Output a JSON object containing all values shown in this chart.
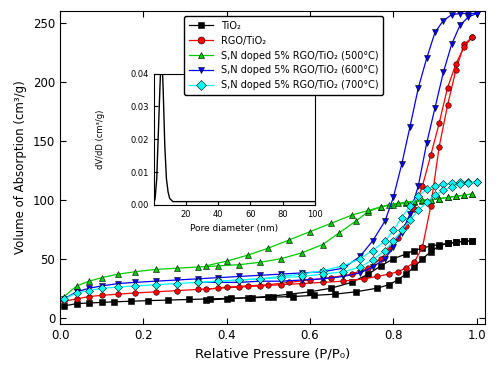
{
  "xlabel": "Relative Pressure (P/P₀)",
  "ylabel": "Volume of Absorption (cm³/g)",
  "xlim": [
    0.0,
    1.02
  ],
  "ylim": [
    -5,
    260
  ],
  "yticks": [
    0,
    50,
    100,
    150,
    200,
    250
  ],
  "xticks": [
    0.0,
    0.2,
    0.4,
    0.6,
    0.8,
    1.0
  ],
  "series": {
    "TiO2": {
      "color": "black",
      "marker": "s",
      "label": "TiO₂",
      "adsorption": {
        "x": [
          0.01,
          0.04,
          0.07,
          0.1,
          0.13,
          0.17,
          0.21,
          0.26,
          0.31,
          0.36,
          0.41,
          0.46,
          0.51,
          0.56,
          0.61,
          0.66,
          0.71,
          0.76,
          0.79,
          0.81,
          0.83,
          0.85,
          0.87,
          0.89,
          0.91,
          0.93,
          0.95,
          0.97,
          0.99
        ],
        "y": [
          10,
          12,
          12.5,
          13,
          13.5,
          14,
          14.5,
          15,
          15.5,
          16,
          16.5,
          17,
          17.5,
          18,
          19,
          20,
          22,
          25,
          28,
          32,
          37,
          43,
          50,
          56,
          61,
          63,
          64,
          65,
          65
        ]
      },
      "desorption": {
        "x": [
          0.99,
          0.97,
          0.95,
          0.93,
          0.91,
          0.89,
          0.87,
          0.85,
          0.83,
          0.8,
          0.77,
          0.74,
          0.7,
          0.65,
          0.6,
          0.55,
          0.5,
          0.45,
          0.4,
          0.35
        ],
        "y": [
          65,
          65,
          64,
          63,
          62,
          61,
          59,
          57,
          54,
          50,
          44,
          37,
          30,
          25,
          22,
          20,
          18,
          17,
          16,
          15
        ]
      }
    },
    "RGO_TiO2": {
      "color": "red",
      "marker": "o",
      "label": "RGO/TiO₂",
      "adsorption": {
        "x": [
          0.01,
          0.04,
          0.07,
          0.1,
          0.14,
          0.18,
          0.23,
          0.28,
          0.33,
          0.38,
          0.43,
          0.48,
          0.53,
          0.58,
          0.63,
          0.68,
          0.73,
          0.76,
          0.79,
          0.81,
          0.83,
          0.85,
          0.87,
          0.89,
          0.91,
          0.93,
          0.95,
          0.97,
          0.99
        ],
        "y": [
          14,
          16,
          18,
          19,
          20,
          21,
          22,
          23,
          24,
          25,
          26,
          27,
          28,
          29,
          30,
          31,
          33,
          35,
          37,
          39,
          42,
          47,
          60,
          95,
          145,
          180,
          210,
          232,
          238
        ]
      },
      "desorption": {
        "x": [
          0.99,
          0.97,
          0.95,
          0.93,
          0.91,
          0.89,
          0.87,
          0.85,
          0.83,
          0.81,
          0.79,
          0.77,
          0.74,
          0.7,
          0.65,
          0.6,
          0.55,
          0.5,
          0.45,
          0.4,
          0.35
        ],
        "y": [
          238,
          230,
          215,
          195,
          165,
          138,
          112,
          92,
          78,
          68,
          58,
          50,
          42,
          37,
          34,
          32,
          30,
          28,
          27,
          26,
          24
        ]
      }
    },
    "SN_500": {
      "color": "#00cc00",
      "marker": "^",
      "label": "S,N doped 5% RGO/TiO₂ (500°C)",
      "adsorption": {
        "x": [
          0.01,
          0.04,
          0.07,
          0.1,
          0.14,
          0.18,
          0.23,
          0.28,
          0.33,
          0.38,
          0.43,
          0.48,
          0.53,
          0.58,
          0.63,
          0.67,
          0.71,
          0.74,
          0.77,
          0.8,
          0.83,
          0.85,
          0.87,
          0.89,
          0.91,
          0.93,
          0.95,
          0.97,
          0.99
        ],
        "y": [
          18,
          27,
          31,
          34,
          37,
          39,
          41,
          42,
          43,
          44,
          45,
          47,
          50,
          55,
          62,
          72,
          82,
          90,
          94,
          96,
          97,
          98,
          99,
          100,
          101,
          102,
          103,
          104,
          105
        ]
      },
      "desorption": {
        "x": [
          0.99,
          0.97,
          0.95,
          0.93,
          0.91,
          0.89,
          0.87,
          0.85,
          0.83,
          0.81,
          0.79,
          0.77,
          0.74,
          0.7,
          0.65,
          0.6,
          0.55,
          0.5,
          0.45,
          0.4,
          0.35
        ],
        "y": [
          105,
          104,
          103,
          102,
          101,
          100,
          100,
          99,
          98,
          97,
          96,
          94,
          91,
          87,
          80,
          73,
          66,
          59,
          53,
          48,
          44
        ]
      }
    },
    "SN_600": {
      "color": "blue",
      "marker": "v",
      "label": "S,N doped 5% RGO/TiO₂ (600°C)",
      "adsorption": {
        "x": [
          0.01,
          0.04,
          0.07,
          0.1,
          0.14,
          0.18,
          0.23,
          0.28,
          0.33,
          0.38,
          0.43,
          0.48,
          0.53,
          0.58,
          0.63,
          0.68,
          0.72,
          0.75,
          0.78,
          0.8,
          0.82,
          0.84,
          0.86,
          0.88,
          0.9,
          0.92,
          0.94,
          0.96,
          0.98,
          1.0
        ],
        "y": [
          16,
          22,
          25,
          27,
          29,
          30,
          31,
          32,
          33,
          34,
          35,
          36,
          37,
          38,
          39,
          42,
          52,
          65,
          82,
          102,
          130,
          162,
          195,
          220,
          242,
          252,
          257,
          258,
          258,
          258
        ]
      },
      "desorption": {
        "x": [
          1.0,
          0.98,
          0.96,
          0.94,
          0.92,
          0.9,
          0.88,
          0.86,
          0.84,
          0.82,
          0.8,
          0.78,
          0.75,
          0.72,
          0.68,
          0.63,
          0.58,
          0.53,
          0.48,
          0.43,
          0.38,
          0.33
        ],
        "y": [
          258,
          255,
          248,
          232,
          208,
          178,
          148,
          112,
          88,
          72,
          60,
          50,
          43,
          38,
          35,
          33,
          32,
          31,
          31,
          30,
          30,
          30
        ]
      }
    },
    "SN_700": {
      "color": "cyan",
      "marker": "D",
      "label": "S,N doped 5% RGO/TiO₂ (700°C)",
      "adsorption": {
        "x": [
          0.01,
          0.04,
          0.07,
          0.1,
          0.14,
          0.18,
          0.23,
          0.28,
          0.33,
          0.38,
          0.43,
          0.48,
          0.53,
          0.58,
          0.63,
          0.68,
          0.72,
          0.75,
          0.78,
          0.8,
          0.82,
          0.84,
          0.86,
          0.88,
          0.9,
          0.92,
          0.94,
          0.96,
          0.98,
          1.0
        ],
        "y": [
          16,
          21,
          23,
          25,
          26,
          27,
          28,
          29,
          30,
          31,
          32,
          33,
          35,
          37,
          40,
          44,
          50,
          57,
          65,
          74,
          85,
          95,
          103,
          109,
          112,
          113,
          114,
          115,
          115,
          115
        ]
      },
      "desorption": {
        "x": [
          1.0,
          0.98,
          0.96,
          0.94,
          0.92,
          0.9,
          0.88,
          0.86,
          0.84,
          0.82,
          0.8,
          0.78,
          0.75,
          0.72,
          0.68,
          0.63,
          0.58,
          0.53,
          0.48,
          0.43,
          0.38,
          0.33
        ],
        "y": [
          115,
          114,
          113,
          111,
          108,
          104,
          98,
          91,
          83,
          74,
          65,
          57,
          49,
          43,
          39,
          37,
          35,
          34,
          33,
          32,
          31,
          30
        ]
      }
    }
  },
  "inset": {
    "xlim": [
      0,
      100
    ],
    "ylim": [
      0.0,
      0.04
    ],
    "yticks": [
      0.0,
      0.01,
      0.02,
      0.03,
      0.04
    ],
    "xticks": [
      20,
      40,
      60,
      80,
      100
    ],
    "xlabel": "Pore diameter (nm)",
    "ylabel": "dV/dD (cm³/g)",
    "x": [
      0,
      1,
      2,
      3,
      4,
      5,
      6,
      7,
      8,
      9,
      10,
      12,
      15,
      20,
      25,
      30,
      40,
      50,
      60,
      70,
      80,
      90,
      100
    ],
    "y": [
      0.0,
      0.002,
      0.008,
      0.022,
      0.036,
      0.048,
      0.035,
      0.018,
      0.008,
      0.004,
      0.002,
      0.001,
      0.001,
      0.001,
      0.001,
      0.001,
      0.001,
      0.001,
      0.001,
      0.001,
      0.001,
      0.001,
      0.001
    ]
  },
  "legend_labels": [
    "TiO₂",
    "RGO/TiO₂",
    "S,N doped 5% RGO/TiO₂ (500°C)",
    "S,N doped 5% RGO/TiO₂ (600°C)",
    "S,N doped 5% RGO/TiO₂ (700°C)"
  ],
  "legend_colors": [
    "black",
    "red",
    "#00cc00",
    "blue",
    "cyan"
  ],
  "legend_markers": [
    "s",
    "o",
    "^",
    "v",
    "D"
  ]
}
